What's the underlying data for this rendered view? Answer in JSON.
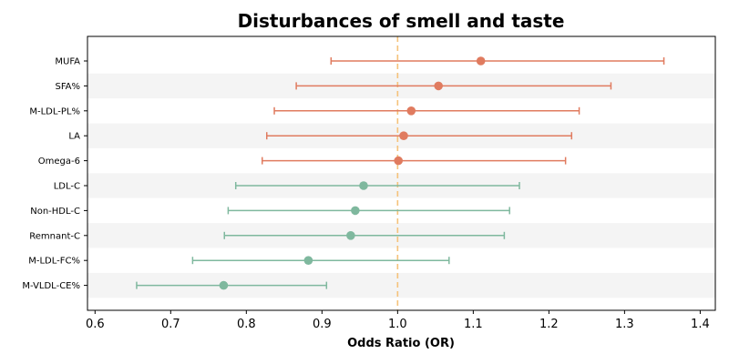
{
  "chart_data": {
    "type": "forest",
    "title": "Disturbances of smell and taste",
    "xlabel": "Odds Ratio (OR)",
    "ylabel": "",
    "xlim": [
      0.59,
      1.42
    ],
    "xticks": [
      0.6,
      0.7,
      0.8,
      0.9,
      1.0,
      1.1,
      1.2,
      1.3,
      1.4
    ],
    "xtick_labels": [
      "0.6",
      "0.7",
      "0.8",
      "0.9",
      "1.0",
      "1.1",
      "1.2",
      "1.3",
      "1.4"
    ],
    "reference_line": 1.0,
    "reference_color": "#f5c27a",
    "grid": false,
    "row_band_color": "#f4f4f4",
    "colors": {
      "increased": "#e07b5f",
      "decreased": "#7fb89e"
    },
    "rows": [
      {
        "label": "MUFA",
        "or": 1.11,
        "lower": 0.912,
        "upper": 1.352,
        "group": "increased"
      },
      {
        "label": "SFA%",
        "or": 1.054,
        "lower": 0.866,
        "upper": 1.282,
        "group": "increased"
      },
      {
        "label": "M-LDL-PL%",
        "or": 1.018,
        "lower": 0.837,
        "upper": 1.24,
        "group": "increased"
      },
      {
        "label": "LA",
        "or": 1.008,
        "lower": 0.827,
        "upper": 1.23,
        "group": "increased"
      },
      {
        "label": "Omega-6",
        "or": 1.001,
        "lower": 0.821,
        "upper": 1.222,
        "group": "increased"
      },
      {
        "label": "LDL-C",
        "or": 0.955,
        "lower": 0.786,
        "upper": 1.161,
        "group": "decreased"
      },
      {
        "label": "Non-HDL-C",
        "or": 0.944,
        "lower": 0.776,
        "upper": 1.148,
        "group": "decreased"
      },
      {
        "label": "Remnant-C",
        "or": 0.938,
        "lower": 0.771,
        "upper": 1.141,
        "group": "decreased"
      },
      {
        "label": "M-LDL-FC%",
        "or": 0.882,
        "lower": 0.729,
        "upper": 1.068,
        "group": "decreased"
      },
      {
        "label": "M-VLDL-CE%",
        "or": 0.77,
        "lower": 0.655,
        "upper": 0.906,
        "group": "decreased"
      }
    ]
  }
}
